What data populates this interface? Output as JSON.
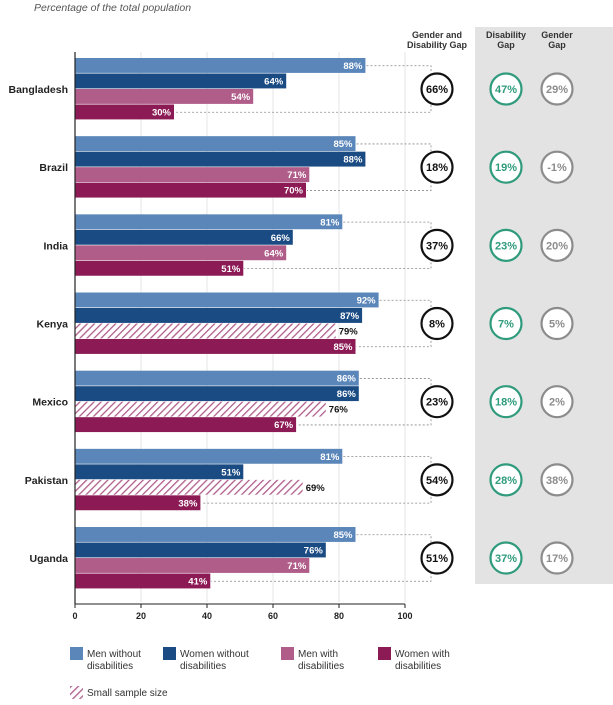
{
  "subtitle": "Percentage of the total population",
  "columns": {
    "gender_disability_gap": [
      "Gender and",
      "Disability Gap"
    ],
    "disability_gap": [
      "Disability",
      "Gap"
    ],
    "gender_gap": [
      "Gender",
      "Gap"
    ]
  },
  "colors": {
    "men_without": "#5b86b9",
    "women_without": "#1b4b83",
    "men_with": "#b05d8a",
    "women_with": "#8b1a55",
    "disability_gap_circle": "#2f9b7c",
    "gender_gap_circle": "#8c8c8c",
    "combined_gap_circle": "#111111",
    "gap_panel": "#e3e3e3"
  },
  "legend": [
    {
      "key": "men_without",
      "lines": [
        "Men without",
        "disabilities"
      ]
    },
    {
      "key": "women_without",
      "lines": [
        "Women without",
        "disabilities"
      ]
    },
    {
      "key": "men_with",
      "lines": [
        "Men with",
        "disabilities"
      ]
    },
    {
      "key": "women_with",
      "lines": [
        "Women with",
        "disabilities"
      ]
    },
    {
      "key": "small_sample",
      "lines": [
        "Small sample size"
      ]
    }
  ],
  "chart_data": {
    "type": "bar",
    "orientation": "horizontal",
    "categories": [
      "Bangladesh",
      "Brazil",
      "India",
      "Kenya",
      "Mexico",
      "Pakistan",
      "Uganda"
    ],
    "series": [
      {
        "name": "Men without disabilities",
        "key": "men_without",
        "values": [
          88,
          85,
          81,
          92,
          86,
          81,
          85
        ]
      },
      {
        "name": "Women without disabilities",
        "key": "women_without",
        "values": [
          64,
          88,
          66,
          87,
          86,
          51,
          76
        ]
      },
      {
        "name": "Men with disabilities",
        "key": "men_with",
        "values": [
          54,
          71,
          64,
          79,
          76,
          69,
          71
        ]
      },
      {
        "name": "Women with disabilities",
        "key": "women_with",
        "values": [
          30,
          70,
          51,
          85,
          67,
          38,
          41
        ]
      }
    ],
    "small_sample": [
      {
        "category": "Kenya",
        "series": "men_with"
      },
      {
        "category": "Mexico",
        "series": "men_with"
      },
      {
        "category": "Pakistan",
        "series": "men_with"
      }
    ],
    "value_labels": [
      [
        "88%",
        "64%",
        "54%",
        "30%"
      ],
      [
        "85%",
        "88%",
        "71%",
        "70%"
      ],
      [
        "81%",
        "66%",
        "64%",
        "51%"
      ],
      [
        "92%",
        "87%",
        "79%",
        "85%"
      ],
      [
        "86%",
        "86%",
        "76%",
        "67%"
      ],
      [
        "81%",
        "51%",
        "69%",
        "38%"
      ],
      [
        "85%",
        "76%",
        "71%",
        "41%"
      ]
    ],
    "gaps": {
      "gender_and_disability": [
        "66%",
        "18%",
        "37%",
        "8%",
        "23%",
        "54%",
        "51%"
      ],
      "disability": [
        "47%",
        "19%",
        "23%",
        "7%",
        "18%",
        "28%",
        "37%"
      ],
      "gender": [
        "29%",
        "-1%",
        "20%",
        "5%",
        "2%",
        "38%",
        "17%"
      ]
    },
    "xlim": [
      0,
      100
    ],
    "xticks": [
      "0",
      "20",
      "40",
      "60",
      "80",
      "100"
    ]
  }
}
